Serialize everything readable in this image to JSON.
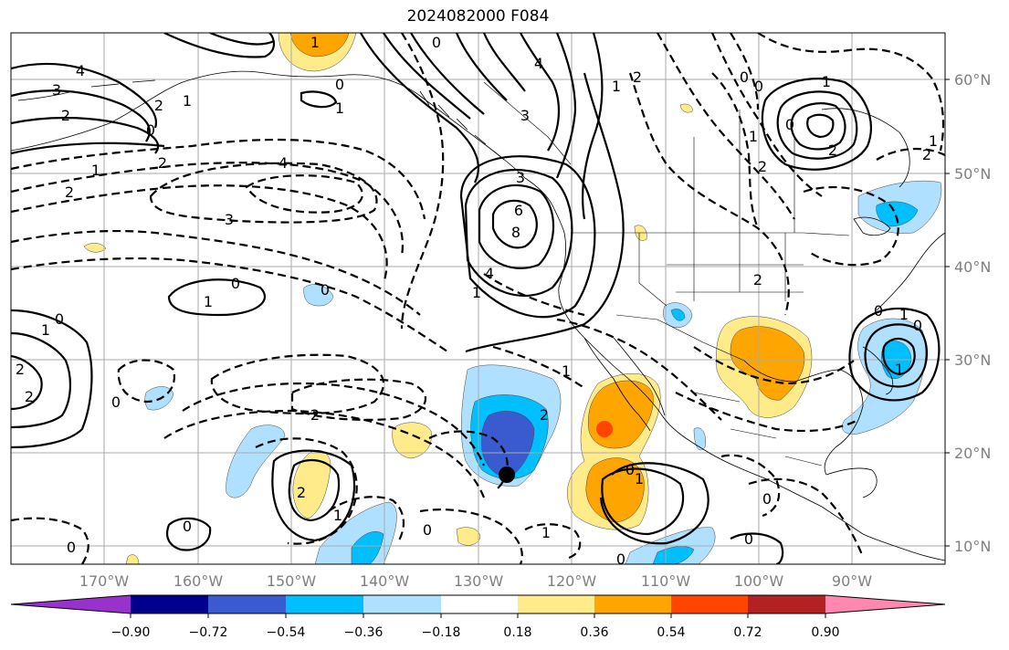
{
  "title": "2024082000 F084",
  "lat_labels": [
    "60°N",
    "50°N",
    "40°N",
    "30°N",
    "20°N",
    "10°N"
  ],
  "lon_labels": [
    "170°W",
    "160°W",
    "150°W",
    "140°W",
    "130°W",
    "120°W",
    "110°W",
    "100°W",
    "90°W"
  ],
  "colorbar": {
    "ticks": [
      "−0.90",
      "−0.72",
      "−0.54",
      "−0.36",
      "−0.18",
      "0.18",
      "0.36",
      "0.54",
      "0.72",
      "0.90"
    ],
    "colors": [
      "#9932cc",
      "#00008b",
      "#3a5bd0",
      "#00bfff",
      "#b0e0ff",
      "#ffffff",
      "#ffeb8a",
      "#ffa500",
      "#ff4500",
      "#b22222",
      "#ff88b0"
    ]
  },
  "contour_labels": [
    "4",
    "3",
    "2",
    "2",
    "1",
    "0",
    "2",
    "1",
    "2",
    "4",
    "3",
    "1",
    "0",
    "0",
    "1",
    "1",
    "2",
    "0",
    "3",
    "4",
    "6",
    "8",
    "4",
    "3",
    "2",
    "0",
    "1",
    "1",
    "0",
    "2",
    "1",
    "2",
    "0",
    "0",
    "2",
    "1",
    "1",
    "0",
    "0",
    "0",
    "1",
    "2",
    "2",
    "0",
    "1",
    "0",
    "1",
    "0",
    "1",
    "0",
    "2",
    "0",
    "2",
    "1",
    "0",
    "2",
    "0",
    "0",
    "1",
    "1"
  ],
  "marker": "current-position"
}
